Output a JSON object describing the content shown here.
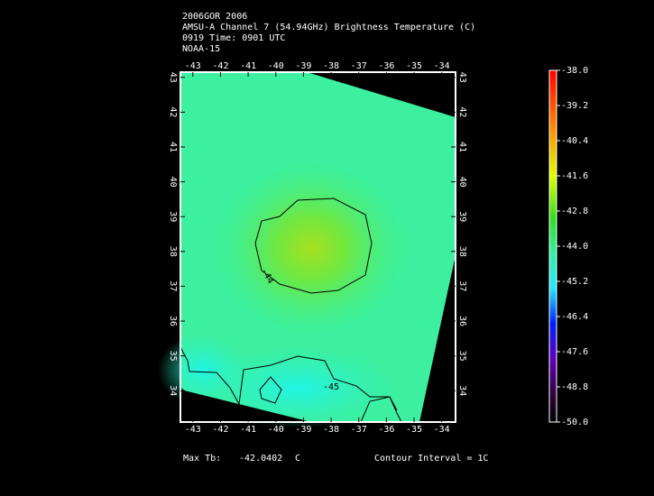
{
  "title_lines": [
    "2006GOR 2006",
    "AMSU-A Channel 7 (54.94GHz) Brightness Temperature (C)",
    "0919 Time: 0901 UTC",
    "NOAA-15"
  ],
  "map": {
    "xlim": [
      -43.45,
      -33.5
    ],
    "ylim": [
      33.1,
      43.15
    ],
    "xticks": [
      -43,
      -42,
      -41,
      -40,
      -39,
      -38,
      -37,
      -36,
      -35,
      -34
    ],
    "yticks": [
      34,
      35,
      36,
      37,
      38,
      39,
      40,
      41,
      42,
      43
    ]
  },
  "contour_labels": [
    "-44",
    "-45"
  ],
  "colorbar": {
    "lim": [
      -50,
      -38
    ],
    "ticks": [
      {
        "value": -38,
        "label": "-38.0"
      },
      {
        "value": -39.2,
        "label": "-39.2"
      },
      {
        "value": -40.4,
        "label": "-40.4"
      },
      {
        "value": -41.6,
        "label": "-41.6"
      },
      {
        "value": -42.8,
        "label": "-42.8"
      },
      {
        "value": -44,
        "label": "-44.0"
      },
      {
        "value": -45.2,
        "label": "-45.2"
      },
      {
        "value": -46.4,
        "label": "-46.4"
      },
      {
        "value": -47.6,
        "label": "-47.6"
      },
      {
        "value": -48.8,
        "label": "-48.8"
      },
      {
        "value": -50,
        "label": "-50.0"
      }
    ]
  },
  "footer": {
    "max_label": "Max Tb:",
    "max_value": -42.0402,
    "max_unit": "C",
    "contour_interval": "Contour Interval = 1C"
  }
}
